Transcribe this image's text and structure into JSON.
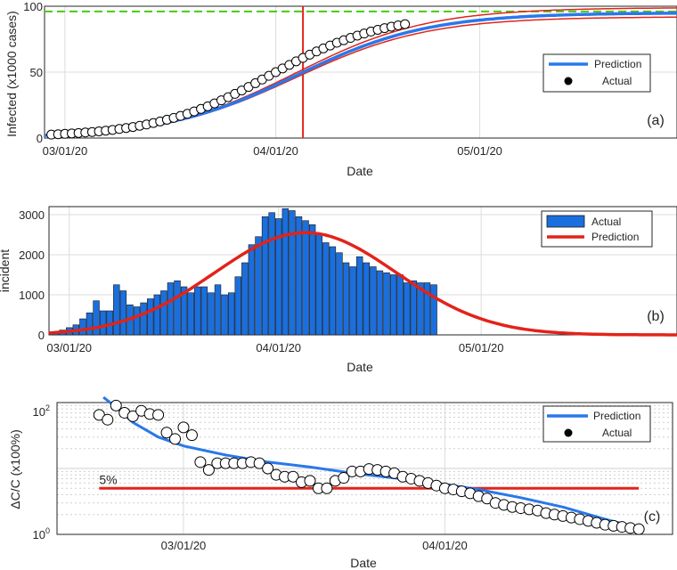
{
  "colors": {
    "prediction_blue": "#2a78ea",
    "fit_red": "#e2231a",
    "ceiling_green": "#44cc11",
    "bar_blue": "#1a6fdf",
    "grid": "#dcdcdc"
  },
  "chart_data": [
    {
      "panel": "(a)",
      "type": "line",
      "xlabel": "Date",
      "ylabel": "Infected (x1000 cases)",
      "x_ticks": [
        "03/01/20",
        "04/01/20",
        "05/01/20"
      ],
      "y_ticks": [
        "0",
        "50",
        "100"
      ],
      "xlim_days": [
        -3,
        90
      ],
      "ylim": [
        0,
        100
      ],
      "grid": true,
      "legend_position": "right",
      "legend": [
        "Prediction",
        "Actual"
      ],
      "marked_day": 35,
      "ceiling": 96,
      "logistic": {
        "K": 95,
        "rate": 0.103,
        "midpoint_day": 34
      },
      "band": {
        "upper_K": 99,
        "lower_K": 92
      },
      "actual_points": [
        {
          "x": -2,
          "y": 2.6
        },
        {
          "x": -1,
          "y": 2.9
        },
        {
          "x": 0,
          "y": 3.2
        },
        {
          "x": 1,
          "y": 3.5
        },
        {
          "x": 2,
          "y": 3.8
        },
        {
          "x": 3,
          "y": 4.2
        },
        {
          "x": 4,
          "y": 4.6
        },
        {
          "x": 5,
          "y": 5.1
        },
        {
          "x": 6,
          "y": 5.6
        },
        {
          "x": 7,
          "y": 6.2
        },
        {
          "x": 8,
          "y": 6.9
        },
        {
          "x": 9,
          "y": 7.6
        },
        {
          "x": 10,
          "y": 8.4
        },
        {
          "x": 11,
          "y": 9.3
        },
        {
          "x": 12,
          "y": 10.3
        },
        {
          "x": 13,
          "y": 11.4
        },
        {
          "x": 14,
          "y": 12.6
        },
        {
          "x": 15,
          "y": 13.9
        },
        {
          "x": 16,
          "y": 15.3
        },
        {
          "x": 17,
          "y": 16.8
        },
        {
          "x": 18,
          "y": 18.4
        },
        {
          "x": 19,
          "y": 20.2
        },
        {
          "x": 20,
          "y": 22.1
        },
        {
          "x": 21,
          "y": 24.1
        },
        {
          "x": 22,
          "y": 26.3
        },
        {
          "x": 23,
          "y": 28.6
        },
        {
          "x": 24,
          "y": 31.0
        },
        {
          "x": 25,
          "y": 33.5
        },
        {
          "x": 26,
          "y": 36.1
        },
        {
          "x": 27,
          "y": 38.8
        },
        {
          "x": 28,
          "y": 41.6
        },
        {
          "x": 29,
          "y": 44.4
        },
        {
          "x": 30,
          "y": 47.2
        },
        {
          "x": 31,
          "y": 50.0
        },
        {
          "x": 32,
          "y": 52.8
        },
        {
          "x": 33,
          "y": 55.5
        },
        {
          "x": 34,
          "y": 58.2
        },
        {
          "x": 35,
          "y": 60.8
        },
        {
          "x": 36,
          "y": 63.3
        },
        {
          "x": 37,
          "y": 65.7
        },
        {
          "x": 38,
          "y": 68.0
        },
        {
          "x": 39,
          "y": 70.2
        },
        {
          "x": 40,
          "y": 72.3
        },
        {
          "x": 41,
          "y": 74.2
        },
        {
          "x": 42,
          "y": 76.0
        },
        {
          "x": 43,
          "y": 77.7
        },
        {
          "x": 44,
          "y": 79.3
        },
        {
          "x": 45,
          "y": 80.8
        },
        {
          "x": 46,
          "y": 82.1
        },
        {
          "x": 47,
          "y": 83.4
        },
        {
          "x": 48,
          "y": 84.5
        },
        {
          "x": 49,
          "y": 85.5
        },
        {
          "x": 50,
          "y": 86.4
        }
      ]
    },
    {
      "panel": "(b)",
      "type": "bar",
      "xlabel": "Date",
      "ylabel": "incident",
      "x_ticks": [
        "03/01/20",
        "04/01/20",
        "05/01/20"
      ],
      "y_ticks": [
        "0",
        "1000",
        "2000",
        "3000"
      ],
      "xlim_days": [
        -3,
        90
      ],
      "ylim": [
        0,
        3200
      ],
      "grid": true,
      "legend_position": "top-right",
      "legend": [
        "Actual",
        "Prediction"
      ],
      "prediction_gaussian": {
        "peak": 2550,
        "center_day": 35,
        "sd_days": 13.5
      },
      "bars": [
        {
          "x": -2,
          "y": 60
        },
        {
          "x": -1,
          "y": 120
        },
        {
          "x": 0,
          "y": 180
        },
        {
          "x": 1,
          "y": 250
        },
        {
          "x": 2,
          "y": 400
        },
        {
          "x": 3,
          "y": 550
        },
        {
          "x": 4,
          "y": 850
        },
        {
          "x": 5,
          "y": 600
        },
        {
          "x": 6,
          "y": 600
        },
        {
          "x": 7,
          "y": 1250
        },
        {
          "x": 8,
          "y": 1100
        },
        {
          "x": 9,
          "y": 750
        },
        {
          "x": 10,
          "y": 700
        },
        {
          "x": 11,
          "y": 800
        },
        {
          "x": 12,
          "y": 900
        },
        {
          "x": 13,
          "y": 1000
        },
        {
          "x": 14,
          "y": 1100
        },
        {
          "x": 15,
          "y": 1300
        },
        {
          "x": 16,
          "y": 1350
        },
        {
          "x": 17,
          "y": 1200
        },
        {
          "x": 18,
          "y": 1050
        },
        {
          "x": 19,
          "y": 1200
        },
        {
          "x": 20,
          "y": 1200
        },
        {
          "x": 21,
          "y": 1050
        },
        {
          "x": 22,
          "y": 1250
        },
        {
          "x": 23,
          "y": 1000
        },
        {
          "x": 24,
          "y": 1050
        },
        {
          "x": 25,
          "y": 1450
        },
        {
          "x": 26,
          "y": 1800
        },
        {
          "x": 27,
          "y": 2250
        },
        {
          "x": 28,
          "y": 2450
        },
        {
          "x": 29,
          "y": 2950
        },
        {
          "x": 30,
          "y": 3050
        },
        {
          "x": 31,
          "y": 2900
        },
        {
          "x": 32,
          "y": 3150
        },
        {
          "x": 33,
          "y": 3100
        },
        {
          "x": 34,
          "y": 2950
        },
        {
          "x": 35,
          "y": 2850
        },
        {
          "x": 36,
          "y": 2750
        },
        {
          "x": 37,
          "y": 2500
        },
        {
          "x": 38,
          "y": 2300
        },
        {
          "x": 39,
          "y": 2200
        },
        {
          "x": 40,
          "y": 2050
        },
        {
          "x": 41,
          "y": 1800
        },
        {
          "x": 42,
          "y": 1700
        },
        {
          "x": 43,
          "y": 1950
        },
        {
          "x": 44,
          "y": 1800
        },
        {
          "x": 45,
          "y": 1700
        },
        {
          "x": 46,
          "y": 1600
        },
        {
          "x": 47,
          "y": 1550
        },
        {
          "x": 48,
          "y": 1500
        },
        {
          "x": 49,
          "y": 1500
        },
        {
          "x": 50,
          "y": 1300
        },
        {
          "x": 51,
          "y": 1350
        },
        {
          "x": 52,
          "y": 1300
        },
        {
          "x": 53,
          "y": 1300
        },
        {
          "x": 54,
          "y": 1250
        }
      ]
    },
    {
      "panel": "(c)",
      "type": "scatter",
      "xlabel": "Date",
      "ylabel": "ΔC/C (x100%)",
      "x_ticks": [
        "03/01/20",
        "04/01/20"
      ],
      "y_ticks": [
        "10^0",
        "10^2"
      ],
      "y_scale": "log",
      "xlim_days": [
        -15,
        58
      ],
      "ylim": [
        1,
        100
      ],
      "grid": true,
      "legend_position": "top-right",
      "legend": [
        "Prediction",
        "Actual"
      ],
      "reference_line": {
        "value": 5,
        "label": "5%",
        "from_day": -10,
        "to_day": 54
      },
      "prediction_curve": [
        {
          "x": -9.5,
          "y": 120
        },
        {
          "x": -8,
          "y": 85
        },
        {
          "x": -6,
          "y": 50
        },
        {
          "x": -3,
          "y": 30
        },
        {
          "x": 0,
          "y": 22
        },
        {
          "x": 5,
          "y": 16
        },
        {
          "x": 10,
          "y": 12.5
        },
        {
          "x": 15,
          "y": 10.5
        },
        {
          "x": 20,
          "y": 8.5
        },
        {
          "x": 25,
          "y": 7.2
        },
        {
          "x": 30,
          "y": 6.0
        },
        {
          "x": 35,
          "y": 4.8
        },
        {
          "x": 40,
          "y": 3.6
        },
        {
          "x": 45,
          "y": 2.6
        },
        {
          "x": 50,
          "y": 1.7
        },
        {
          "x": 54,
          "y": 1.25
        }
      ],
      "actual_points": [
        {
          "x": -10,
          "y": 65
        },
        {
          "x": -9,
          "y": 55
        },
        {
          "x": -8,
          "y": 90
        },
        {
          "x": -7,
          "y": 70
        },
        {
          "x": -6,
          "y": 62
        },
        {
          "x": -5,
          "y": 75
        },
        {
          "x": -4,
          "y": 67
        },
        {
          "x": -3,
          "y": 65
        },
        {
          "x": -2,
          "y": 35
        },
        {
          "x": -1,
          "y": 28
        },
        {
          "x": 0,
          "y": 42
        },
        {
          "x": 1,
          "y": 32
        },
        {
          "x": 2,
          "y": 12.5
        },
        {
          "x": 3,
          "y": 9.5
        },
        {
          "x": 4,
          "y": 12
        },
        {
          "x": 5,
          "y": 12
        },
        {
          "x": 6,
          "y": 12
        },
        {
          "x": 7,
          "y": 12
        },
        {
          "x": 8,
          "y": 12.5
        },
        {
          "x": 9,
          "y": 12
        },
        {
          "x": 10,
          "y": 10
        },
        {
          "x": 11,
          "y": 8
        },
        {
          "x": 12,
          "y": 7.5
        },
        {
          "x": 13,
          "y": 7.5
        },
        {
          "x": 14,
          "y": 6.2
        },
        {
          "x": 15,
          "y": 6.5
        },
        {
          "x": 16,
          "y": 5.0
        },
        {
          "x": 17,
          "y": 5.0
        },
        {
          "x": 18,
          "y": 6.5
        },
        {
          "x": 19,
          "y": 7.2
        },
        {
          "x": 20,
          "y": 9.0
        },
        {
          "x": 21,
          "y": 9.0
        },
        {
          "x": 22,
          "y": 9.8
        },
        {
          "x": 23,
          "y": 9.5
        },
        {
          "x": 24,
          "y": 9.0
        },
        {
          "x": 25,
          "y": 8.5
        },
        {
          "x": 26,
          "y": 7.5
        },
        {
          "x": 27,
          "y": 7.0
        },
        {
          "x": 28,
          "y": 6.5
        },
        {
          "x": 29,
          "y": 6.0
        },
        {
          "x": 30,
          "y": 5.5
        },
        {
          "x": 31,
          "y": 5.0
        },
        {
          "x": 32,
          "y": 4.8
        },
        {
          "x": 33,
          "y": 4.5
        },
        {
          "x": 34,
          "y": 4.2
        },
        {
          "x": 35,
          "y": 3.8
        },
        {
          "x": 36,
          "y": 3.5
        },
        {
          "x": 37,
          "y": 3.0
        },
        {
          "x": 38,
          "y": 2.8
        },
        {
          "x": 39,
          "y": 2.6
        },
        {
          "x": 40,
          "y": 2.5
        },
        {
          "x": 41,
          "y": 2.4
        },
        {
          "x": 42,
          "y": 2.3
        },
        {
          "x": 43,
          "y": 2.1
        },
        {
          "x": 44,
          "y": 2.0
        },
        {
          "x": 45,
          "y": 1.9
        },
        {
          "x": 46,
          "y": 1.8
        },
        {
          "x": 47,
          "y": 1.7
        },
        {
          "x": 48,
          "y": 1.6
        },
        {
          "x": 49,
          "y": 1.5
        },
        {
          "x": 50,
          "y": 1.4
        },
        {
          "x": 51,
          "y": 1.35
        },
        {
          "x": 52,
          "y": 1.3
        },
        {
          "x": 53,
          "y": 1.25
        },
        {
          "x": 54,
          "y": 1.2
        }
      ]
    }
  ]
}
